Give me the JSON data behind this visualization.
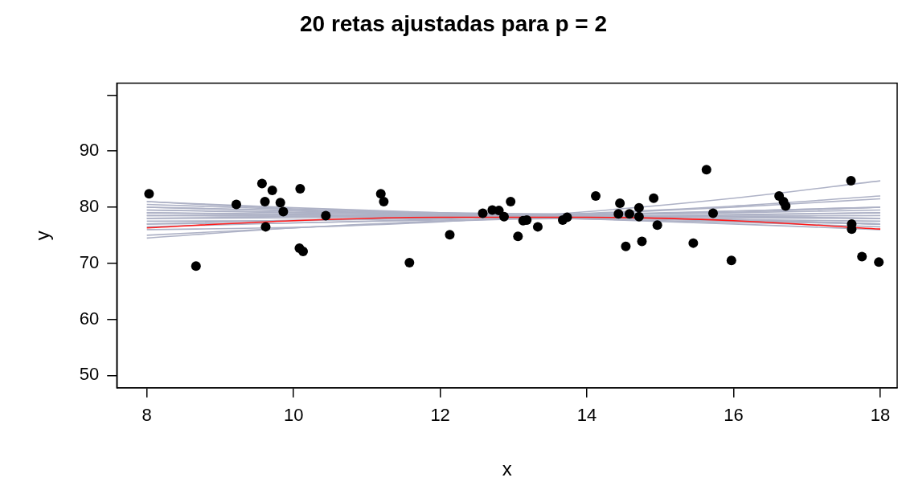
{
  "chart_data": {
    "type": "scatter",
    "title": "20 retas ajustadas para p = 2",
    "xlabel": "x",
    "ylabel": "y",
    "xlim": [
      7.59,
      18.23
    ],
    "ylim": [
      47.8,
      102.1
    ],
    "xticks": [
      8,
      10,
      12,
      14,
      16,
      18
    ],
    "yticks": [
      50,
      60,
      70,
      80,
      90,
      {
        "value": 100,
        "label": null
      }
    ],
    "grid": false,
    "legend": false,
    "series": [
      {
        "type": "line",
        "marker": "none",
        "color": "#aeb2c6",
        "x": [
          8,
          10,
          12,
          14,
          16,
          18
        ],
        "values": [
          81,
          79.9,
          79.0,
          78.2,
          77.5,
          77
        ]
      },
      {
        "type": "line",
        "marker": "none",
        "color": "#aeb2c6",
        "x": [
          8,
          10,
          12,
          14,
          16,
          18
        ],
        "values": [
          80.5,
          79.6,
          78.8,
          78.2,
          77.8,
          77.5
        ]
      },
      {
        "type": "line",
        "marker": "none",
        "color": "#aeb2c6",
        "x": [
          8,
          10,
          12,
          14,
          16,
          18
        ],
        "values": [
          80,
          79.3,
          78.7,
          78.3,
          78.1,
          78
        ]
      },
      {
        "type": "line",
        "marker": "none",
        "color": "#aeb2c6",
        "x": [
          8,
          10,
          12,
          14,
          16,
          18
        ],
        "values": [
          79.5,
          79.0,
          78.7,
          78.5,
          78.4,
          78.5
        ]
      },
      {
        "type": "line",
        "marker": "none",
        "color": "#aeb2c6",
        "x": [
          8,
          10,
          12,
          14,
          16,
          18
        ],
        "values": [
          79,
          78.6,
          78.4,
          78.4,
          78.6,
          79
        ]
      },
      {
        "type": "line",
        "marker": "none",
        "color": "#aeb2c6",
        "x": [
          8,
          10,
          12,
          14,
          16,
          18
        ],
        "values": [
          78.5,
          78.4,
          78.4,
          78.6,
          79.0,
          79.5
        ]
      },
      {
        "type": "line",
        "marker": "none",
        "color": "#aeb2c6",
        "x": [
          8,
          10,
          12,
          14,
          16,
          18
        ],
        "values": [
          78,
          78.1,
          78.3,
          78.7,
          79.3,
          80
        ]
      },
      {
        "type": "line",
        "marker": "none",
        "color": "#aeb2c6",
        "x": [
          8,
          10,
          12,
          14,
          16,
          18
        ],
        "values": [
          77.5,
          77.6,
          78.0,
          78.8,
          80.0,
          81.5
        ]
      },
      {
        "type": "line",
        "marker": "none",
        "color": "#aeb2c6",
        "x": [
          8,
          10,
          12,
          14,
          16,
          18
        ],
        "values": [
          77,
          77.2,
          77.9,
          78.9,
          80.2,
          82
        ]
      },
      {
        "type": "line",
        "marker": "none",
        "color": "#aeb2c6",
        "x": [
          8,
          10,
          12,
          14,
          16,
          18
        ],
        "values": [
          76,
          76.4,
          77.4,
          79.2,
          81.6,
          84.7
        ]
      },
      {
        "type": "line",
        "marker": "none",
        "color": "#aeb2c6",
        "x": [
          8,
          10,
          12,
          14,
          16,
          18
        ],
        "values": [
          75,
          76.3,
          77.5,
          78.5,
          79.3,
          80
        ]
      },
      {
        "type": "line",
        "marker": "none",
        "color": "#aeb2c6",
        "x": [
          8,
          10,
          12,
          14,
          16,
          18
        ],
        "values": [
          74.5,
          76.3,
          77.5,
          78.0,
          77.8,
          77
        ]
      },
      {
        "type": "line",
        "marker": "none",
        "color": "#aeb2c6",
        "x": [
          8,
          10,
          12,
          14,
          16,
          18
        ],
        "values": [
          80,
          79.4,
          78.7,
          77.9,
          77.0,
          76
        ]
      },
      {
        "type": "line",
        "marker": "none",
        "color": "#aeb2c6",
        "x": [
          8,
          10,
          12,
          14,
          16,
          18
        ],
        "values": [
          79,
          78.8,
          78.4,
          77.9,
          77.3,
          76.5
        ]
      },
      {
        "type": "line",
        "marker": "none",
        "color": "#aeb2c6",
        "x": [
          8,
          10,
          12,
          14,
          16,
          18
        ],
        "values": [
          78,
          78.3,
          78.4,
          78.2,
          77.7,
          77
        ]
      },
      {
        "type": "line",
        "marker": "none",
        "color": "#aeb2c6",
        "x": [
          8,
          10,
          12,
          14,
          16,
          18
        ],
        "values": [
          77,
          77.7,
          78.1,
          78.3,
          78.3,
          78
        ]
      },
      {
        "type": "line",
        "marker": "none",
        "color": "#aeb2c6",
        "x": [
          8,
          10,
          12,
          14,
          16,
          18
        ],
        "values": [
          76.5,
          77.2,
          77.7,
          78.2,
          78.7,
          79
        ]
      },
      {
        "type": "line",
        "marker": "none",
        "color": "#aeb2c6",
        "x": [
          8,
          10,
          12,
          14,
          16,
          18
        ],
        "values": [
          81,
          79.7,
          79.0,
          78.8,
          79.1,
          80
        ]
      },
      {
        "type": "line",
        "marker": "none",
        "color": "#aeb2c6",
        "x": [
          8,
          10,
          12,
          14,
          16,
          18
        ],
        "values": [
          79.5,
          79.1,
          78.6,
          78.1,
          77.6,
          77
        ]
      },
      {
        "type": "line",
        "marker": "none",
        "color": "#aeb2c6",
        "x": [
          8,
          10,
          12,
          14,
          16,
          18
        ],
        "values": [
          78.5,
          78.6,
          78.6,
          78.5,
          78.3,
          78
        ]
      },
      {
        "type": "line",
        "marker": "none",
        "color": "#ff1a1a",
        "x": [
          8,
          10,
          12,
          14,
          16,
          18
        ],
        "values": [
          76.3,
          77.6,
          78.2,
          78.2,
          77.6,
          76.1
        ]
      },
      {
        "type": "scatter",
        "marker": "circle",
        "color": "#000000",
        "x": [
          8.03,
          8.67,
          9.22,
          9.57,
          9.61,
          9.62,
          9.71,
          9.82,
          9.86,
          10.09,
          10.08,
          10.13,
          10.44,
          11.19,
          11.23,
          11.58,
          12.13,
          12.58,
          12.71,
          12.8,
          12.87,
          12.96,
          13.06,
          13.13,
          13.18,
          13.33,
          13.67,
          13.73,
          14.12,
          14.45,
          14.43,
          14.58,
          14.71,
          14.71,
          14.75,
          14.53,
          14.91,
          14.96,
          15.45,
          15.63,
          15.72,
          15.97,
          16.62,
          16.68,
          16.71,
          17.6,
          17.61,
          17.61,
          17.75,
          17.98
        ],
        "values": [
          82.4,
          69.5,
          80.5,
          84.2,
          81.0,
          76.5,
          83.0,
          80.8,
          79.2,
          83.3,
          72.7,
          72.1,
          78.5,
          82.4,
          81.0,
          70.1,
          75.1,
          78.9,
          79.5,
          79.4,
          78.3,
          81.0,
          74.8,
          77.6,
          77.7,
          76.5,
          77.7,
          78.2,
          82.0,
          80.7,
          78.8,
          78.8,
          79.9,
          78.3,
          73.9,
          73.0,
          81.6,
          76.8,
          73.6,
          86.7,
          78.9,
          70.5,
          82.0,
          81.0,
          80.2,
          84.7,
          77.0,
          76.1,
          71.2,
          70.2
        ]
      }
    ]
  }
}
